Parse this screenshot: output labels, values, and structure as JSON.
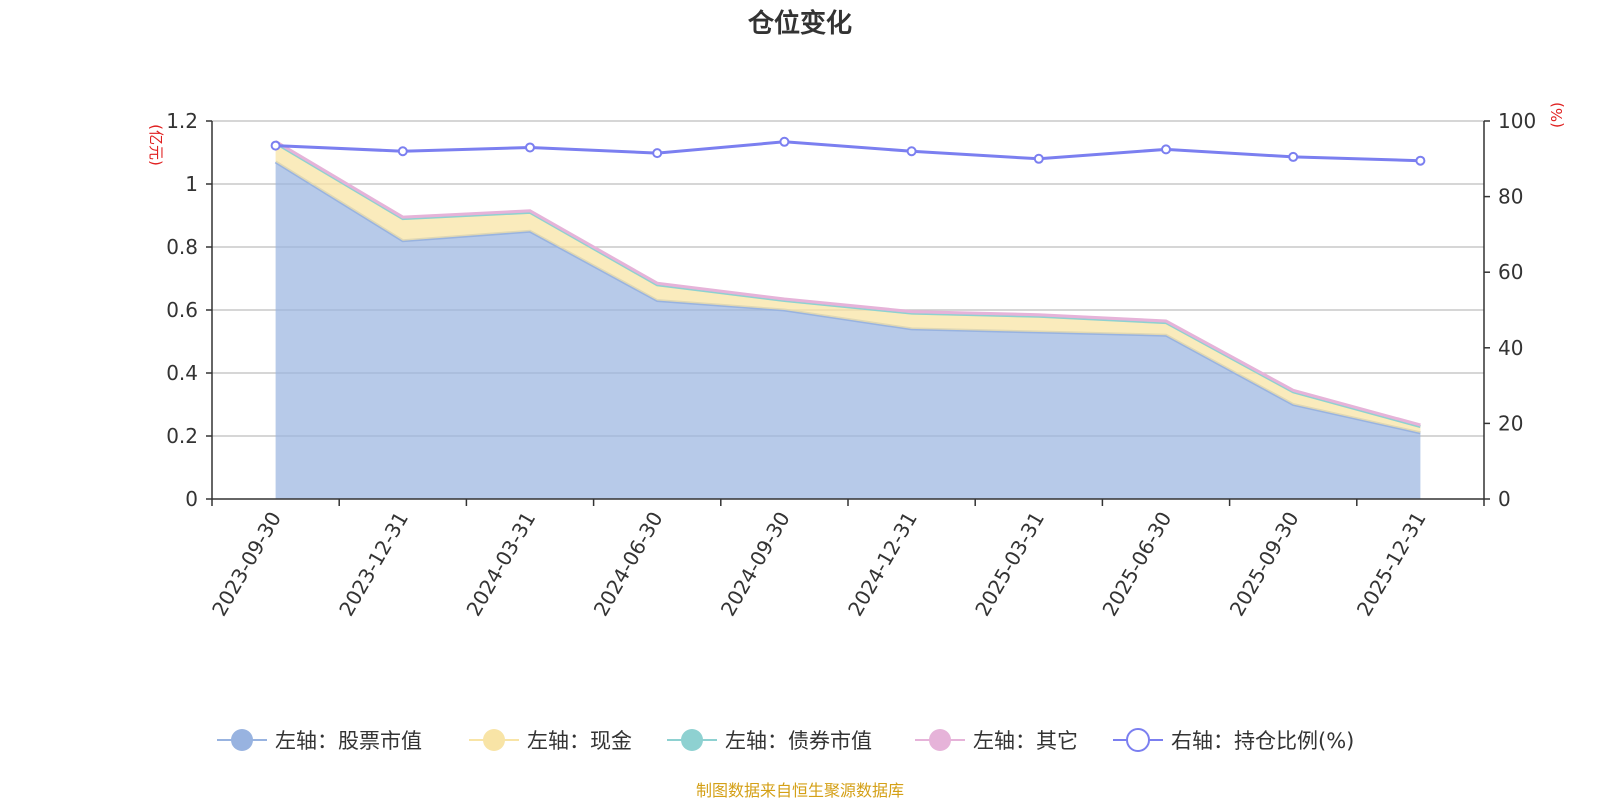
{
  "chart_data": {
    "type": "area",
    "title": "仓位变化",
    "left_axis": {
      "unit_label": "(亿元)",
      "ticks": [
        "0",
        "0.2",
        "0.4",
        "0.6",
        "0.8",
        "1",
        "1.2"
      ],
      "range": [
        0,
        1.2
      ]
    },
    "right_axis": {
      "unit_label": "(%)",
      "ticks": [
        "0",
        "20",
        "40",
        "60",
        "80",
        "100"
      ],
      "range": [
        0,
        100
      ]
    },
    "categories": [
      "2023-09-30",
      "2023-12-31",
      "2024-03-31",
      "2024-06-30",
      "2024-09-30",
      "2024-12-31",
      "2025-03-31",
      "2025-06-30",
      "2025-09-30",
      "2025-12-31"
    ],
    "series": [
      {
        "name": "左轴：股票市值",
        "axis": "left",
        "stack": true,
        "color": "#98b3e0",
        "values": [
          1.07,
          0.82,
          0.85,
          0.63,
          0.6,
          0.54,
          0.53,
          0.52,
          0.3,
          0.21
        ]
      },
      {
        "name": "左轴：现金",
        "axis": "left",
        "stack": true,
        "color": "#f8e4a6",
        "values": [
          0.06,
          0.07,
          0.06,
          0.05,
          0.03,
          0.05,
          0.05,
          0.04,
          0.04,
          0.02
        ]
      },
      {
        "name": "左轴：债券市值",
        "axis": "left",
        "stack": true,
        "color": "#8ed1d1",
        "values": [
          0,
          0,
          0,
          0,
          0,
          0,
          0,
          0,
          0,
          0
        ]
      },
      {
        "name": "左轴：其它",
        "axis": "left",
        "stack": true,
        "color": "#e6b3d9",
        "values": [
          0.005,
          0.005,
          0.005,
          0.005,
          0.005,
          0.005,
          0.005,
          0.005,
          0.005,
          0.005
        ]
      },
      {
        "name": "右轴：持仓比例(%)",
        "axis": "right",
        "stack": false,
        "color": "#7b7ff0",
        "values": [
          93.5,
          92.0,
          93.0,
          91.5,
          94.5,
          92.0,
          90.0,
          92.5,
          90.5,
          89.5
        ]
      }
    ],
    "legend_position": "bottom",
    "grid": true
  },
  "source_note": "制图数据来自恒生聚源数据库"
}
